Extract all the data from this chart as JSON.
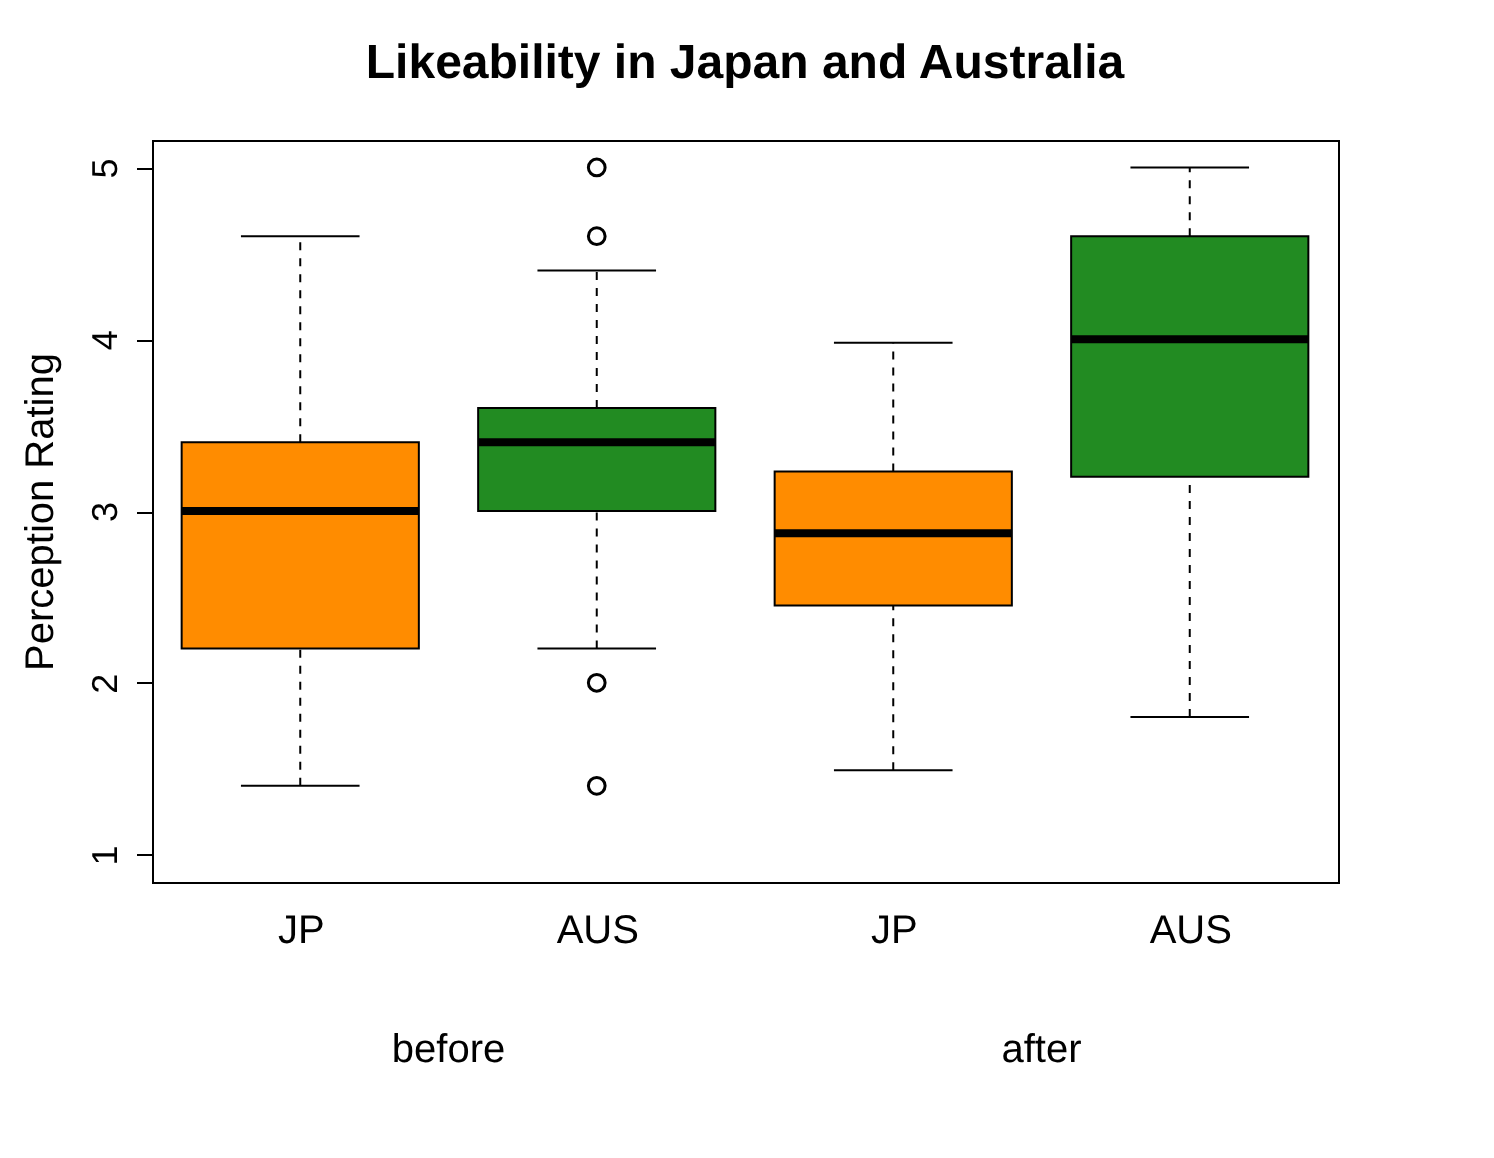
{
  "chart_data": {
    "type": "box",
    "title": "Likeability in Japan and Australia",
    "ylabel": "Perception Rating",
    "categories": [
      "JP",
      "AUS",
      "JP",
      "AUS"
    ],
    "colors": [
      "#ff8c00",
      "#228b22",
      "#ff8c00",
      "#228b22"
    ],
    "boxes": [
      {
        "low": 1.4,
        "q1": 2.2,
        "median": 3.0,
        "q3": 3.4,
        "high": 4.6
      },
      {
        "low": 2.2,
        "q1": 3.0,
        "median": 3.4,
        "q3": 3.6,
        "high": 4.4,
        "outliers": [
          5.0,
          4.6,
          2.0,
          1.4
        ]
      },
      {
        "low": 1.49,
        "q1": 2.45,
        "median": 2.87,
        "q3": 3.23,
        "high": 3.98
      },
      {
        "low": 1.8,
        "q1": 3.2,
        "median": 4.0,
        "q3": 4.6,
        "high": 5.0
      }
    ],
    "ylim": [
      0.84,
      5.16
    ],
    "yticks": [
      1,
      2,
      3,
      4,
      5
    ],
    "grid": false,
    "annotations": [
      "before",
      "after"
    ]
  }
}
